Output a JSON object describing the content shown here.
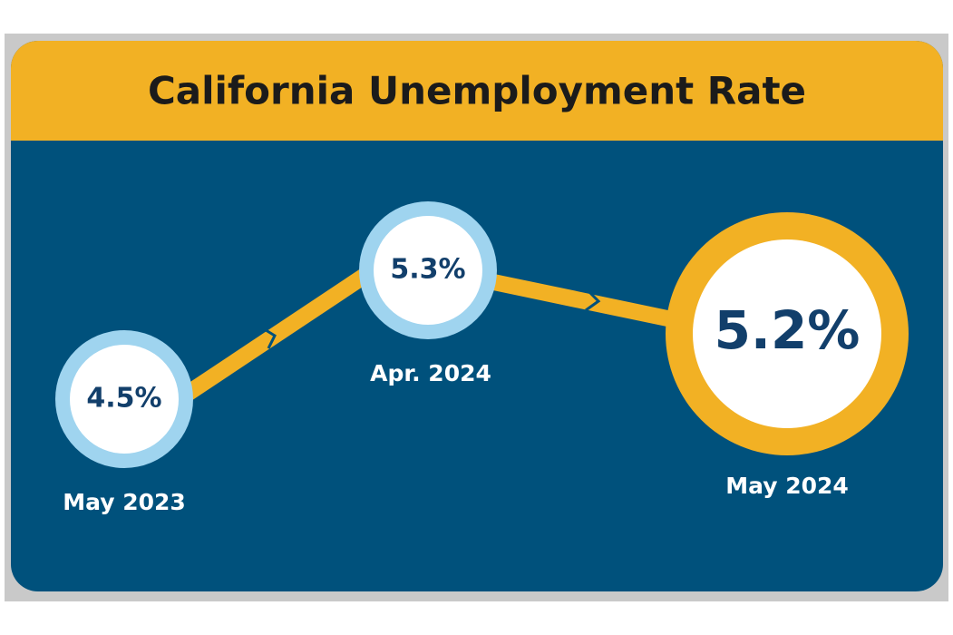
{
  "title": "California Unemployment Rate",
  "points": [
    {
      "value": "4.5%",
      "date": "May 2023"
    },
    {
      "value": "5.3%",
      "date": "Apr. 2024"
    },
    {
      "value": "5.2%",
      "date": "May 2024"
    }
  ]
}
